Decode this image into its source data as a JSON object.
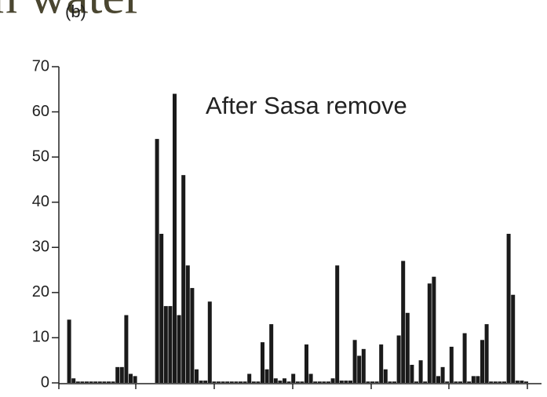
{
  "chart_data": {
    "type": "bar",
    "title": "n water",
    "subtitle": "(b)",
    "annotation": "After Sasa remove",
    "categories": [
      null,
      null,
      null,
      null,
      null,
      null,
      null,
      null,
      null,
      null,
      null,
      null,
      null,
      null,
      null,
      null,
      null,
      null,
      null,
      null,
      null,
      null,
      null,
      null,
      null,
      null,
      null,
      null,
      null,
      null,
      null,
      null,
      null,
      null,
      null,
      null,
      null,
      null,
      null,
      null,
      null,
      null,
      null,
      null,
      null,
      null,
      null,
      null,
      null,
      null,
      null,
      null,
      null,
      null,
      null,
      null,
      null,
      null,
      null,
      null,
      null,
      null,
      null,
      null,
      null,
      null,
      null,
      null,
      null,
      null,
      null,
      null,
      null,
      null,
      null,
      null,
      null,
      null,
      null,
      null,
      null,
      null,
      null,
      null,
      null,
      null,
      null,
      null,
      null,
      null,
      null,
      null,
      null,
      null,
      null,
      null,
      null,
      null,
      null,
      null,
      null,
      null,
      null,
      null,
      null,
      null
    ],
    "values": [
      0,
      14,
      1,
      0.3,
      0.3,
      0.3,
      0.3,
      0.3,
      0.3,
      0.3,
      0.3,
      0.3,
      3.5,
      3.5,
      15,
      2,
      1.5,
      0,
      0,
      0,
      0,
      54,
      33,
      17,
      17,
      64,
      15,
      46,
      26,
      21,
      3,
      0.5,
      0.5,
      18,
      0.3,
      0.3,
      0.3,
      0.3,
      0.3,
      0.3,
      0.3,
      0.3,
      2,
      0.3,
      0.3,
      9,
      3,
      13,
      1,
      0.5,
      1,
      0.3,
      2,
      0.3,
      0.3,
      8.5,
      2,
      0.3,
      0.3,
      0.3,
      0.3,
      1,
      26,
      0.5,
      0.5,
      0.5,
      9.5,
      6,
      7.5,
      0.3,
      0.3,
      0.3,
      8.5,
      3,
      0.3,
      0.3,
      10.5,
      27,
      15.5,
      4,
      0.3,
      5,
      0.3,
      22,
      23.5,
      1.5,
      3.5,
      0.3,
      8,
      0.3,
      0.3,
      11,
      0.3,
      1.5,
      1.5,
      9.5,
      13,
      0.3,
      0.3,
      0.3,
      0.3,
      33,
      19.5,
      0.5,
      0.5,
      0.3
    ],
    "color": "#1a1a1a",
    "ylim": [
      0,
      70
    ],
    "yticks": [
      0,
      10,
      20,
      30,
      40,
      50,
      60,
      70
    ],
    "grid": false
  }
}
